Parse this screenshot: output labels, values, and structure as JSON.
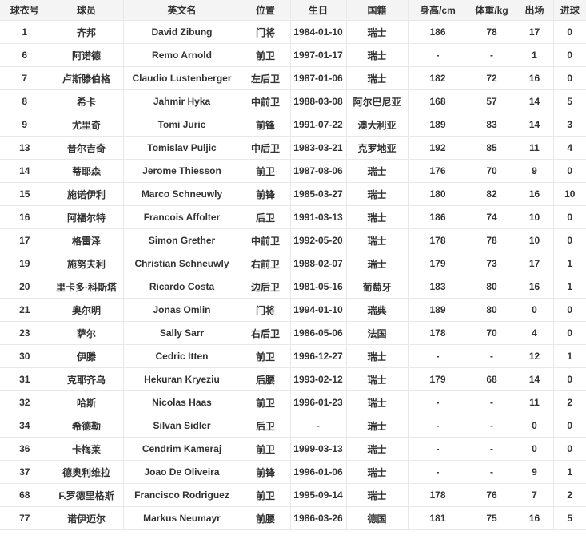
{
  "colors": {
    "header_bg": "#f4f4f4",
    "grid_border": "#e8e8e8",
    "text": "#333333",
    "page_bg": "#ffffff"
  },
  "chart_data": {
    "type": "table",
    "columns": [
      "球衣号",
      "球员",
      "英文名",
      "位置",
      "生日",
      "国籍",
      "身高/cm",
      "体重/kg",
      "出场",
      "进球"
    ],
    "column_semantics": [
      "jersey-number",
      "player-name",
      "english-name",
      "position",
      "birthday",
      "nationality",
      "height",
      "weight",
      "appearances",
      "goals"
    ],
    "missing_marker": "-",
    "rows": [
      [
        1,
        "齐邦",
        "David Zibung",
        "门将",
        "1984-01-10",
        "瑞士",
        186,
        78,
        17,
        0
      ],
      [
        6,
        "阿诺德",
        "Remo Arnold",
        "前卫",
        "1997-01-17",
        "瑞士",
        "-",
        "-",
        1,
        0
      ],
      [
        7,
        "卢斯滕伯格",
        "Claudio Lustenberger",
        "左后卫",
        "1987-01-06",
        "瑞士",
        182,
        72,
        16,
        0
      ],
      [
        8,
        "希卡",
        "Jahmir Hyka",
        "中前卫",
        "1988-03-08",
        "阿尔巴尼亚",
        168,
        57,
        14,
        5
      ],
      [
        9,
        "尤里奇",
        "Tomi Juric",
        "前锋",
        "1991-07-22",
        "澳大利亚",
        189,
        83,
        14,
        3
      ],
      [
        13,
        "普尔吉奇",
        "Tomislav Puljic",
        "中后卫",
        "1983-03-21",
        "克罗地亚",
        192,
        85,
        11,
        4
      ],
      [
        14,
        "蒂耶森",
        "Jerome Thiesson",
        "前卫",
        "1987-08-06",
        "瑞士",
        176,
        70,
        9,
        0
      ],
      [
        15,
        "施诺伊利",
        "Marco Schneuwly",
        "前锋",
        "1985-03-27",
        "瑞士",
        180,
        82,
        16,
        10
      ],
      [
        16,
        "阿福尔特",
        "Francois Affolter",
        "后卫",
        "1991-03-13",
        "瑞士",
        186,
        74,
        10,
        0
      ],
      [
        17,
        "格雷泽",
        "Simon Grether",
        "中前卫",
        "1992-05-20",
        "瑞士",
        178,
        78,
        10,
        0
      ],
      [
        19,
        "施努夫利",
        "Christian Schneuwly",
        "右前卫",
        "1988-02-07",
        "瑞士",
        179,
        73,
        17,
        1
      ],
      [
        20,
        "里卡多·科斯塔",
        "Ricardo Costa",
        "边后卫",
        "1981-05-16",
        "葡萄牙",
        183,
        80,
        16,
        1
      ],
      [
        21,
        "奥尔明",
        "Jonas Omlin",
        "门将",
        "1994-01-10",
        "瑞典",
        189,
        80,
        0,
        0
      ],
      [
        23,
        "萨尔",
        "Sally Sarr",
        "右后卫",
        "1986-05-06",
        "法国",
        178,
        70,
        4,
        0
      ],
      [
        30,
        "伊滕",
        "Cedric Itten",
        "前卫",
        "1996-12-27",
        "瑞士",
        "-",
        "-",
        12,
        1
      ],
      [
        31,
        "克耶齐乌",
        "Hekuran Kryeziu",
        "后腰",
        "1993-02-12",
        "瑞士",
        179,
        68,
        14,
        0
      ],
      [
        32,
        "哈斯",
        "Nicolas Haas",
        "前卫",
        "1996-01-23",
        "瑞士",
        "-",
        "-",
        11,
        2
      ],
      [
        34,
        "希德勒",
        "Silvan Sidler",
        "后卫",
        "-",
        "瑞士",
        "-",
        "-",
        0,
        0
      ],
      [
        36,
        "卡梅莱",
        "Cendrim Kameraj",
        "前卫",
        "1999-03-13",
        "瑞士",
        "-",
        "-",
        0,
        0
      ],
      [
        37,
        "德奥利维拉",
        "Joao De Oliveira",
        "前锋",
        "1996-01-06",
        "瑞士",
        "-",
        "-",
        9,
        1
      ],
      [
        68,
        "F.罗德里格斯",
        "Francisco Rodriguez",
        "前卫",
        "1995-09-14",
        "瑞士",
        178,
        76,
        7,
        2
      ],
      [
        77,
        "诺伊迈尔",
        "Markus Neumayr",
        "前腰",
        "1986-03-26",
        "德国",
        181,
        75,
        16,
        5
      ]
    ]
  }
}
